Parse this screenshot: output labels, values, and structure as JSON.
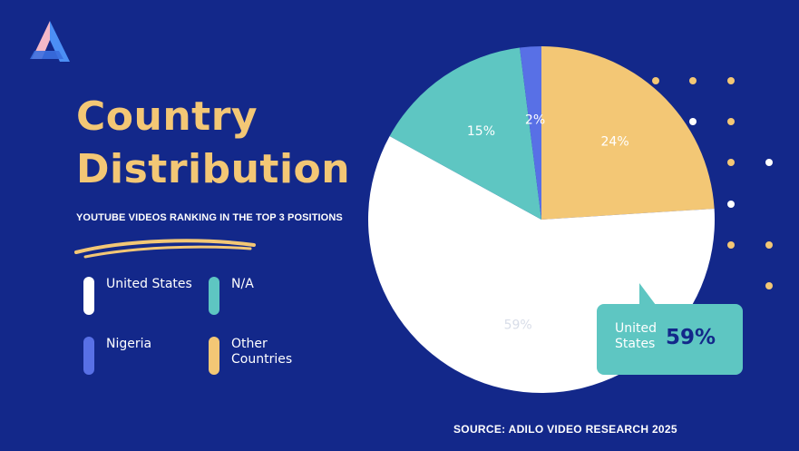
{
  "title": "Country Distribution",
  "subtitle": "YOUTUBE VIDEOS RANKING IN THE TOP 3 POSITIONS",
  "source": "SOURCE: ADILO VIDEO RESEARCH 2025",
  "legend": [
    {
      "label": "United States",
      "color": "#ffffff"
    },
    {
      "label": "N/A",
      "color": "#5ec6c2"
    },
    {
      "label": "Nigeria",
      "color": "#5870e6"
    },
    {
      "label": "Other Countries",
      "color": "#f3c775"
    }
  ],
  "callout": {
    "label": "United States",
    "value": "59%"
  },
  "colors": {
    "background": "#13288a",
    "title": "#f3c775",
    "dot_yellow": "#f3c775",
    "dot_white": "#ffffff"
  },
  "chart_data": {
    "type": "pie",
    "slices": [
      {
        "name": "Other Countries",
        "value": 24,
        "label": "24%",
        "color": "#f3c775"
      },
      {
        "name": "United States",
        "value": 59,
        "label": "59%",
        "color": "#ffffff"
      },
      {
        "name": "N/A",
        "value": 15,
        "label": "15%",
        "color": "#5ec6c2"
      },
      {
        "name": "Nigeria",
        "value": 2,
        "label": "2%",
        "color": "#5870e6"
      }
    ]
  }
}
